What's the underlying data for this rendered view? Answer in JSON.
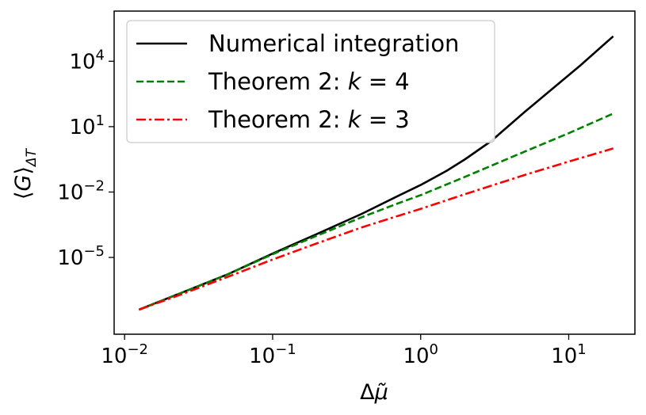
{
  "chart_data": {
    "type": "line",
    "title": "",
    "xlabel": "Δμ̃",
    "ylabel": "⟨G⟩ΔT",
    "xscale": "log",
    "yscale": "log",
    "xlim": [
      0.0085,
      28
    ],
    "ylim": [
      3e-09,
      2000000
    ],
    "xticks": [
      {
        "value": 0.01,
        "base": "10",
        "exp": "−2"
      },
      {
        "value": 0.1,
        "base": "10",
        "exp": "−1"
      },
      {
        "value": 1,
        "base": "10",
        "exp": "0"
      },
      {
        "value": 10,
        "base": "10",
        "exp": "1"
      }
    ],
    "yticks": [
      {
        "value": 1e-05,
        "base": "10",
        "exp": "−5"
      },
      {
        "value": 0.01,
        "base": "10",
        "exp": "−2"
      },
      {
        "value": 10,
        "base": "10",
        "exp": "1"
      },
      {
        "value": 10000,
        "base": "10",
        "exp": "4"
      }
    ],
    "grid": false,
    "legend_position": "top-left",
    "series": [
      {
        "name": "Numerical integration",
        "color": "#000000",
        "dash": "solid",
        "x": [
          0.0125,
          0.025,
          0.05,
          0.1,
          0.2,
          0.4,
          0.7,
          1.0,
          1.5,
          2.0,
          3.0,
          5.0,
          8.0,
          12.0,
          20.0
        ],
        "y": [
          4e-08,
          2.6e-07,
          1.7e-06,
          1.5e-05,
          0.00012,
          0.001,
          0.0065,
          0.021,
          0.095,
          0.32,
          2.2,
          45,
          650,
          6500,
          140000
        ]
      },
      {
        "name": "Theorem 2: k = 4",
        "color": "#008000",
        "dash": "dashed",
        "x": [
          0.0125,
          0.025,
          0.05,
          0.1,
          0.2,
          0.4,
          0.7,
          1.0,
          2.0,
          5.0,
          10.0,
          20.0
        ],
        "y": [
          4e-08,
          2.6e-07,
          1.7e-06,
          1.4e-05,
          0.0001,
          0.0007,
          0.003,
          0.0072,
          0.05,
          0.7,
          5.0,
          40
        ]
      },
      {
        "name": "Theorem 2: k = 3",
        "color": "#ff0000",
        "dash": "dashdot",
        "x": [
          0.0125,
          0.025,
          0.05,
          0.1,
          0.2,
          0.4,
          0.7,
          1.0,
          2.0,
          5.0,
          10.0,
          20.0
        ],
        "y": [
          4e-08,
          2.2e-07,
          1.3e-06,
          8e-06,
          4.5e-05,
          0.00024,
          0.0008,
          0.0017,
          0.008,
          0.06,
          0.25,
          1.0
        ]
      }
    ],
    "legend": [
      {
        "prefix": "Numerical integration",
        "var": "",
        "suffix": ""
      },
      {
        "prefix": "Theorem 2: ",
        "var": "k",
        "suffix": " = 4"
      },
      {
        "prefix": "Theorem 2: ",
        "var": "k",
        "suffix": " = 3"
      }
    ]
  }
}
